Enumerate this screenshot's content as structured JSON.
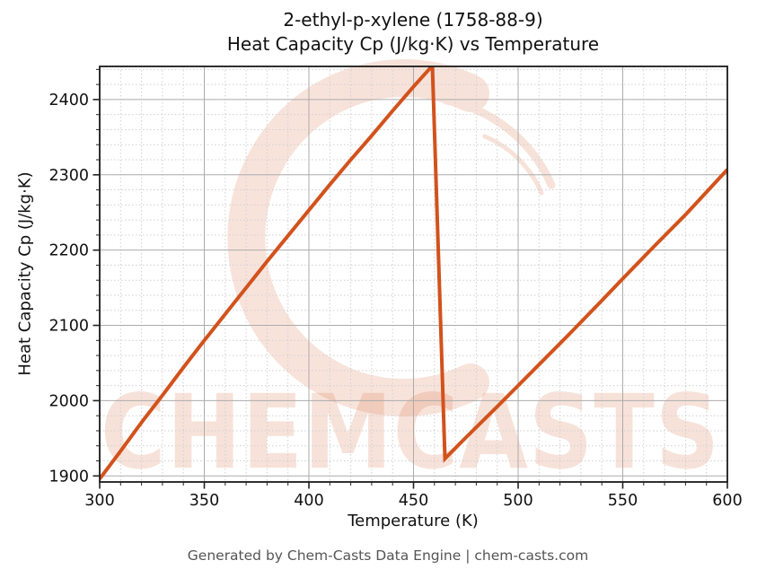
{
  "title": {
    "line1": "2-ethyl-p-xylene (1758-88-9)",
    "line2": "Heat Capacity Cp (J/kg·K) vs Temperature"
  },
  "footer": "Generated by Chem-Casts Data Engine | chem-casts.com",
  "watermark": {
    "text": "CHEMCASTS",
    "logo": "c-swirl-logo",
    "color": "#d2521c",
    "opacity": 0.16
  },
  "chart_data": {
    "type": "line",
    "title": "2-ethyl-p-xylene (1758-88-9) — Heat Capacity Cp (J/kg·K) vs Temperature",
    "xlabel": "Temperature (K)",
    "ylabel": "Heat Capacity Cp (J/kg·K)",
    "xlim": [
      300,
      600
    ],
    "ylim": [
      1892,
      2444
    ],
    "xticks": [
      300,
      350,
      400,
      450,
      500,
      550,
      600
    ],
    "yticks": [
      1900,
      2000,
      2100,
      2200,
      2300,
      2400
    ],
    "x_minor_step": 10,
    "y_minor_step": 20,
    "grid": true,
    "legend": "none",
    "line_color": "#d2521c",
    "line_width": 4,
    "series": [
      {
        "name": "Cp",
        "points": [
          [
            300,
            1896
          ],
          [
            310,
            1933
          ],
          [
            320,
            1971
          ],
          [
            330,
            2007
          ],
          [
            340,
            2044
          ],
          [
            350,
            2080
          ],
          [
            360,
            2115
          ],
          [
            370,
            2150
          ],
          [
            380,
            2185
          ],
          [
            390,
            2219
          ],
          [
            400,
            2253
          ],
          [
            410,
            2287
          ],
          [
            420,
            2320
          ],
          [
            430,
            2352
          ],
          [
            440,
            2385
          ],
          [
            450,
            2417
          ],
          [
            459,
            2445
          ],
          [
            465,
            1923
          ],
          [
            475,
            1951
          ],
          [
            490,
            1992
          ],
          [
            500,
            2020
          ],
          [
            510,
            2048
          ],
          [
            525,
            2090
          ],
          [
            540,
            2133
          ],
          [
            550,
            2162
          ],
          [
            565,
            2205
          ],
          [
            580,
            2247
          ],
          [
            600,
            2307
          ]
        ]
      }
    ]
  }
}
